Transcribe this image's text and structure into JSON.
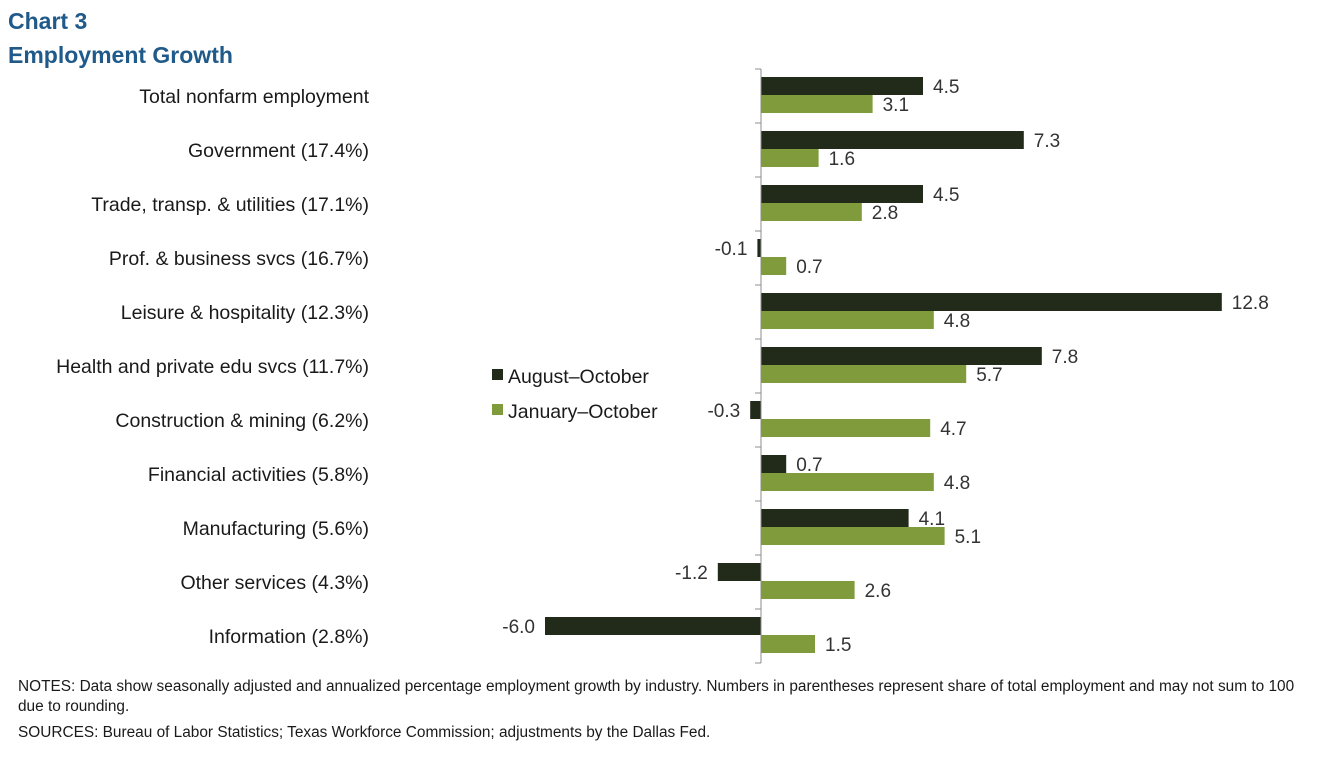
{
  "header": {
    "chart_label": "Chart 3",
    "title": "Employment  Growth"
  },
  "notes": {
    "notes_text": "NOTES: Data show seasonally adjusted and annualized percentage employment growth by industry. Numbers in parentheses represent share of total employment and may not sum to 100 due to rounding.",
    "sources_text": "SOURCES: Bureau of Labor Statistics; Texas Workforce Commission; adjustments by the Dallas Fed."
  },
  "chart_data": {
    "type": "bar",
    "orientation": "horizontal",
    "title": "Employment  Growth",
    "categories": [
      "Total nonfarm employment",
      "Government (17.4%)",
      "Trade, transp. & utilities (17.1%)",
      "Prof. & business svcs (16.7%)",
      "Leisure & hospitality (12.3%)",
      "Health and private edu svcs (11.7%)",
      "Construction & mining (6.2%)",
      "Financial activities (5.8%)",
      "Manufacturing (5.6%)",
      "Other services (4.3%)",
      "Information (2.8%)"
    ],
    "series": [
      {
        "name": "August–October",
        "color": "#222a1a",
        "values": [
          4.5,
          7.3,
          4.5,
          -0.1,
          12.8,
          7.8,
          -0.3,
          0.7,
          4.1,
          -1.2,
          -6.0
        ]
      },
      {
        "name": "January–October",
        "color": "#7f9b3c",
        "values": [
          3.1,
          1.6,
          2.8,
          0.7,
          4.8,
          5.7,
          4.7,
          4.8,
          5.1,
          2.6,
          1.5
        ]
      }
    ],
    "data_labels": true,
    "value_format": "0.0",
    "xlim": [
      -6.0,
      12.8
    ],
    "grid": false,
    "legend_position": "center-left"
  }
}
